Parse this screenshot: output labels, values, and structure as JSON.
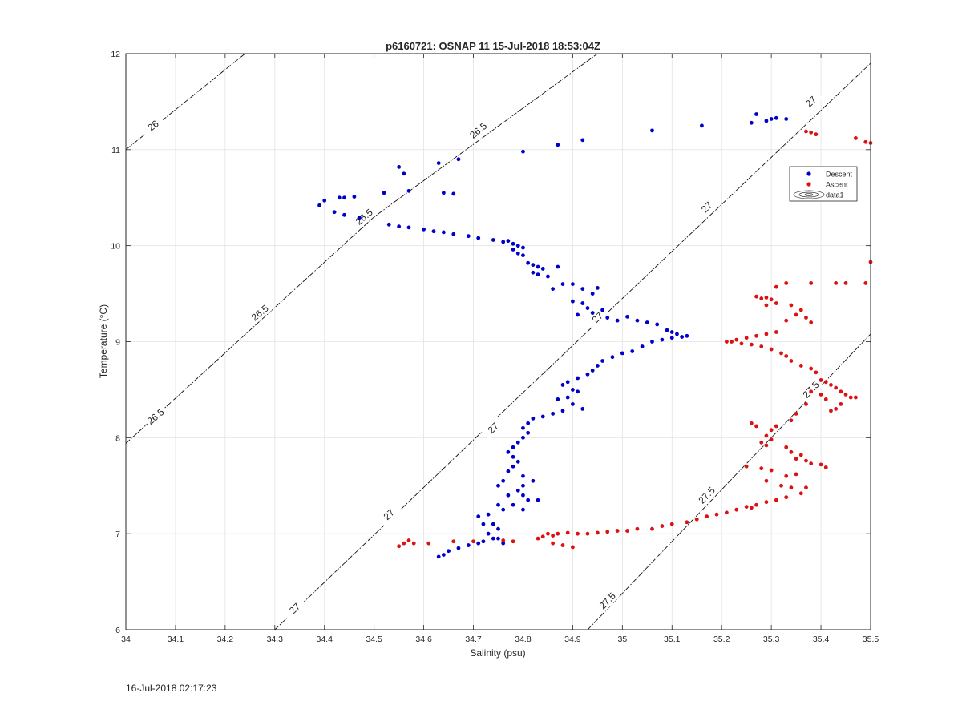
{
  "chart_data": {
    "type": "scatter",
    "title": "p6160721: OSNAP 11 15-Jul-2018 18:53:04Z",
    "xlabel": "Salinity (psu)",
    "ylabel": "Temperature (°C)",
    "xlim": [
      34,
      35.5
    ],
    "ylim": [
      6,
      12
    ],
    "xticks": [
      34,
      34.1,
      34.2,
      34.3,
      34.4,
      34.5,
      34.6,
      34.7,
      34.8,
      34.9,
      35,
      35.1,
      35.2,
      35.3,
      35.4,
      35.5
    ],
    "xtick_labels": [
      "34",
      "34.1",
      "34.2",
      "34.3",
      "34.4",
      "34.5",
      "34.6",
      "34.7",
      "34.8",
      "34.9",
      "35",
      "35.1",
      "35.2",
      "35.3",
      "35.4",
      "35.5"
    ],
    "yticks": [
      6,
      7,
      8,
      9,
      10,
      11,
      12
    ],
    "ytick_labels": [
      "6",
      "7",
      "8",
      "9",
      "10",
      "11",
      "12"
    ],
    "grid": true,
    "legend_position": "top-right",
    "legend": [
      "Descent",
      "Ascent",
      "data1"
    ],
    "density_contours": [
      {
        "label": "26",
        "points": [
          [
            34,
            11
          ],
          [
            34.24,
            12
          ]
        ],
        "label_pos": [
          34.055,
          11.25
        ]
      },
      {
        "label": "26.5",
        "points": [
          [
            34,
            7.94
          ],
          [
            34.5,
            10.3
          ],
          [
            34.95,
            12
          ]
        ],
        "label_at": [
          [
            34.06,
            8.22
          ],
          [
            34.27,
            9.3
          ],
          [
            34.48,
            10.3
          ],
          [
            34.71,
            11.2
          ]
        ]
      },
      {
        "label": "27",
        "points": [
          [
            34.3,
            6
          ],
          [
            34.8,
            8.47
          ],
          [
            35.5,
            11.9
          ]
        ],
        "label_at": [
          [
            34.34,
            6.22
          ],
          [
            34.53,
            7.2
          ],
          [
            34.74,
            8.1
          ],
          [
            34.95,
            9.25
          ],
          [
            35.17,
            10.4
          ],
          [
            35.38,
            11.5
          ]
        ]
      },
      {
        "label": "27.5",
        "points": [
          [
            34.93,
            6
          ],
          [
            35.5,
            9.08
          ]
        ],
        "label_at": [
          [
            34.97,
            6.3
          ],
          [
            35.17,
            7.4
          ],
          [
            35.38,
            8.5
          ]
        ]
      }
    ],
    "series": [
      {
        "name": "Descent",
        "color": "#0000cc",
        "points": [
          [
            35.33,
            11.32
          ],
          [
            35.31,
            11.33
          ],
          [
            35.3,
            11.32
          ],
          [
            35.29,
            11.3
          ],
          [
            35.27,
            11.37
          ],
          [
            35.26,
            11.28
          ],
          [
            35.16,
            11.25
          ],
          [
            35.06,
            11.2
          ],
          [
            34.92,
            11.1
          ],
          [
            34.87,
            11.05
          ],
          [
            34.8,
            10.98
          ],
          [
            34.67,
            10.9
          ],
          [
            34.63,
            10.86
          ],
          [
            34.55,
            10.82
          ],
          [
            34.56,
            10.75
          ],
          [
            34.39,
            10.42
          ],
          [
            34.4,
            10.47
          ],
          [
            34.43,
            10.5
          ],
          [
            34.44,
            10.5
          ],
          [
            34.46,
            10.51
          ],
          [
            34.52,
            10.55
          ],
          [
            34.57,
            10.57
          ],
          [
            34.64,
            10.55
          ],
          [
            34.66,
            10.54
          ],
          [
            34.42,
            10.35
          ],
          [
            34.44,
            10.32
          ],
          [
            34.47,
            10.29
          ],
          [
            34.53,
            10.22
          ],
          [
            34.55,
            10.2
          ],
          [
            34.57,
            10.19
          ],
          [
            34.6,
            10.17
          ],
          [
            34.62,
            10.15
          ],
          [
            34.64,
            10.14
          ],
          [
            34.66,
            10.12
          ],
          [
            34.69,
            10.1
          ],
          [
            34.71,
            10.08
          ],
          [
            34.74,
            10.06
          ],
          [
            34.76,
            10.04
          ],
          [
            34.77,
            10.05
          ],
          [
            34.78,
            10.02
          ],
          [
            34.79,
            10.0
          ],
          [
            34.8,
            9.98
          ],
          [
            34.78,
            9.96
          ],
          [
            34.79,
            9.92
          ],
          [
            34.8,
            9.9
          ],
          [
            34.81,
            9.82
          ],
          [
            34.82,
            9.8
          ],
          [
            34.83,
            9.78
          ],
          [
            34.84,
            9.76
          ],
          [
            34.82,
            9.72
          ],
          [
            34.83,
            9.7
          ],
          [
            34.85,
            9.68
          ],
          [
            34.87,
            9.78
          ],
          [
            34.86,
            9.55
          ],
          [
            34.88,
            9.6
          ],
          [
            34.9,
            9.6
          ],
          [
            34.92,
            9.55
          ],
          [
            34.94,
            9.5
          ],
          [
            34.95,
            9.56
          ],
          [
            34.9,
            9.42
          ],
          [
            34.92,
            9.4
          ],
          [
            34.93,
            9.35
          ],
          [
            34.94,
            9.3
          ],
          [
            34.96,
            9.33
          ],
          [
            34.91,
            9.28
          ],
          [
            34.97,
            9.25
          ],
          [
            34.99,
            9.22
          ],
          [
            35.01,
            9.26
          ],
          [
            35.03,
            9.22
          ],
          [
            35.05,
            9.2
          ],
          [
            35.07,
            9.18
          ],
          [
            35.09,
            9.12
          ],
          [
            35.1,
            9.1
          ],
          [
            35.11,
            9.08
          ],
          [
            35.12,
            9.05
          ],
          [
            35.13,
            9.06
          ],
          [
            35.1,
            9.04
          ],
          [
            35.08,
            9.02
          ],
          [
            35.06,
            9.0
          ],
          [
            35.04,
            8.95
          ],
          [
            35.02,
            8.9
          ],
          [
            35.0,
            8.88
          ],
          [
            34.98,
            8.84
          ],
          [
            34.96,
            8.8
          ],
          [
            34.95,
            8.75
          ],
          [
            34.94,
            8.7
          ],
          [
            34.93,
            8.66
          ],
          [
            34.91,
            8.62
          ],
          [
            34.89,
            8.58
          ],
          [
            34.88,
            8.55
          ],
          [
            34.9,
            8.5
          ],
          [
            34.91,
            8.48
          ],
          [
            34.89,
            8.42
          ],
          [
            34.87,
            8.4
          ],
          [
            34.9,
            8.35
          ],
          [
            34.92,
            8.3
          ],
          [
            34.88,
            8.28
          ],
          [
            34.86,
            8.25
          ],
          [
            34.84,
            8.22
          ],
          [
            34.82,
            8.2
          ],
          [
            34.81,
            8.15
          ],
          [
            34.8,
            8.1
          ],
          [
            34.81,
            8.05
          ],
          [
            34.8,
            8.0
          ],
          [
            34.79,
            7.95
          ],
          [
            34.78,
            7.9
          ],
          [
            34.77,
            7.85
          ],
          [
            34.78,
            7.8
          ],
          [
            34.79,
            7.75
          ],
          [
            34.78,
            7.7
          ],
          [
            34.77,
            7.65
          ],
          [
            34.8,
            7.6
          ],
          [
            34.82,
            7.55
          ],
          [
            34.8,
            7.5
          ],
          [
            34.79,
            7.45
          ],
          [
            34.8,
            7.4
          ],
          [
            34.81,
            7.35
          ],
          [
            34.83,
            7.35
          ],
          [
            34.78,
            7.3
          ],
          [
            34.8,
            7.25
          ],
          [
            34.76,
            7.55
          ],
          [
            34.75,
            7.5
          ],
          [
            34.77,
            7.4
          ],
          [
            34.75,
            7.3
          ],
          [
            34.76,
            7.25
          ],
          [
            34.73,
            7.2
          ],
          [
            34.71,
            7.18
          ],
          [
            34.72,
            7.1
          ],
          [
            34.74,
            7.1
          ],
          [
            34.75,
            7.05
          ],
          [
            34.73,
            7.0
          ],
          [
            34.74,
            6.95
          ],
          [
            34.72,
            6.92
          ],
          [
            34.71,
            6.9
          ],
          [
            34.69,
            6.88
          ],
          [
            34.67,
            6.85
          ],
          [
            34.65,
            6.82
          ],
          [
            34.64,
            6.78
          ],
          [
            34.63,
            6.76
          ],
          [
            34.75,
            6.95
          ],
          [
            34.76,
            6.9
          ]
        ]
      },
      {
        "name": "Ascent",
        "color": "#dd1111",
        "points": [
          [
            35.5,
            11.07
          ],
          [
            35.49,
            11.08
          ],
          [
            35.47,
            11.12
          ],
          [
            35.39,
            11.16
          ],
          [
            35.38,
            11.18
          ],
          [
            35.37,
            11.19
          ],
          [
            35.5,
            9.83
          ],
          [
            35.49,
            9.61
          ],
          [
            35.45,
            9.61
          ],
          [
            35.43,
            9.61
          ],
          [
            35.38,
            9.61
          ],
          [
            35.33,
            9.61
          ],
          [
            35.31,
            9.57
          ],
          [
            35.29,
            9.46
          ],
          [
            35.28,
            9.45
          ],
          [
            35.27,
            9.47
          ],
          [
            35.3,
            9.44
          ],
          [
            35.31,
            9.4
          ],
          [
            35.29,
            9.38
          ],
          [
            35.34,
            9.38
          ],
          [
            35.36,
            9.33
          ],
          [
            35.35,
            9.28
          ],
          [
            35.37,
            9.25
          ],
          [
            35.33,
            9.22
          ],
          [
            35.38,
            9.2
          ],
          [
            35.31,
            9.1
          ],
          [
            35.29,
            9.08
          ],
          [
            35.27,
            9.06
          ],
          [
            35.25,
            9.04
          ],
          [
            35.23,
            9.02
          ],
          [
            35.22,
            9.0
          ],
          [
            35.21,
            9.0
          ],
          [
            35.24,
            8.98
          ],
          [
            35.26,
            8.97
          ],
          [
            35.28,
            8.95
          ],
          [
            35.3,
            8.92
          ],
          [
            35.32,
            8.88
          ],
          [
            35.33,
            8.85
          ],
          [
            35.34,
            8.8
          ],
          [
            35.36,
            8.75
          ],
          [
            35.38,
            8.72
          ],
          [
            35.39,
            8.68
          ],
          [
            35.4,
            8.6
          ],
          [
            35.41,
            8.58
          ],
          [
            35.42,
            8.55
          ],
          [
            35.43,
            8.52
          ],
          [
            35.44,
            8.48
          ],
          [
            35.45,
            8.45
          ],
          [
            35.46,
            8.42
          ],
          [
            35.47,
            8.42
          ],
          [
            35.44,
            8.35
          ],
          [
            35.43,
            8.3
          ],
          [
            35.42,
            8.28
          ],
          [
            35.41,
            8.4
          ],
          [
            35.4,
            8.45
          ],
          [
            35.38,
            8.48
          ],
          [
            35.37,
            8.35
          ],
          [
            35.35,
            8.25
          ],
          [
            35.34,
            8.18
          ],
          [
            35.31,
            8.12
          ],
          [
            35.3,
            8.08
          ],
          [
            35.29,
            8.02
          ],
          [
            35.3,
            7.98
          ],
          [
            35.28,
            7.95
          ],
          [
            35.29,
            7.92
          ],
          [
            35.33,
            7.9
          ],
          [
            35.34,
            7.85
          ],
          [
            35.36,
            7.82
          ],
          [
            35.35,
            7.78
          ],
          [
            35.37,
            7.76
          ],
          [
            35.38,
            7.73
          ],
          [
            35.4,
            7.72
          ],
          [
            35.41,
            7.69
          ],
          [
            35.35,
            7.62
          ],
          [
            35.33,
            7.6
          ],
          [
            35.3,
            7.66
          ],
          [
            35.28,
            7.68
          ],
          [
            35.25,
            7.7
          ],
          [
            35.29,
            7.55
          ],
          [
            35.32,
            7.5
          ],
          [
            35.34,
            7.48
          ],
          [
            35.37,
            7.48
          ],
          [
            35.36,
            7.42
          ],
          [
            35.33,
            7.38
          ],
          [
            35.31,
            7.35
          ],
          [
            35.29,
            7.33
          ],
          [
            35.27,
            7.3
          ],
          [
            35.26,
            7.27
          ],
          [
            35.25,
            7.28
          ],
          [
            35.23,
            7.25
          ],
          [
            35.21,
            7.22
          ],
          [
            35.19,
            7.2
          ],
          [
            35.17,
            7.18
          ],
          [
            35.15,
            7.15
          ],
          [
            35.13,
            7.12
          ],
          [
            35.1,
            7.1
          ],
          [
            35.08,
            7.08
          ],
          [
            35.06,
            7.05
          ],
          [
            35.03,
            7.05
          ],
          [
            35.01,
            7.03
          ],
          [
            34.99,
            7.03
          ],
          [
            34.97,
            7.02
          ],
          [
            34.95,
            7.01
          ],
          [
            34.93,
            7.0
          ],
          [
            34.91,
            7.0
          ],
          [
            34.89,
            7.01
          ],
          [
            34.87,
            7.0
          ],
          [
            34.86,
            6.98
          ],
          [
            34.85,
            7.0
          ],
          [
            34.84,
            6.97
          ],
          [
            34.83,
            6.95
          ],
          [
            34.86,
            6.9
          ],
          [
            34.88,
            6.88
          ],
          [
            34.9,
            6.86
          ],
          [
            34.78,
            6.92
          ],
          [
            34.76,
            6.93
          ],
          [
            34.7,
            6.92
          ],
          [
            34.66,
            6.92
          ],
          [
            34.61,
            6.9
          ],
          [
            34.58,
            6.9
          ],
          [
            34.57,
            6.93
          ],
          [
            34.56,
            6.9
          ],
          [
            34.55,
            6.87
          ],
          [
            35.26,
            8.15
          ],
          [
            35.27,
            8.12
          ]
        ]
      }
    ]
  },
  "footer": {
    "timestamp": "16-Jul-2018 02:17:23"
  }
}
